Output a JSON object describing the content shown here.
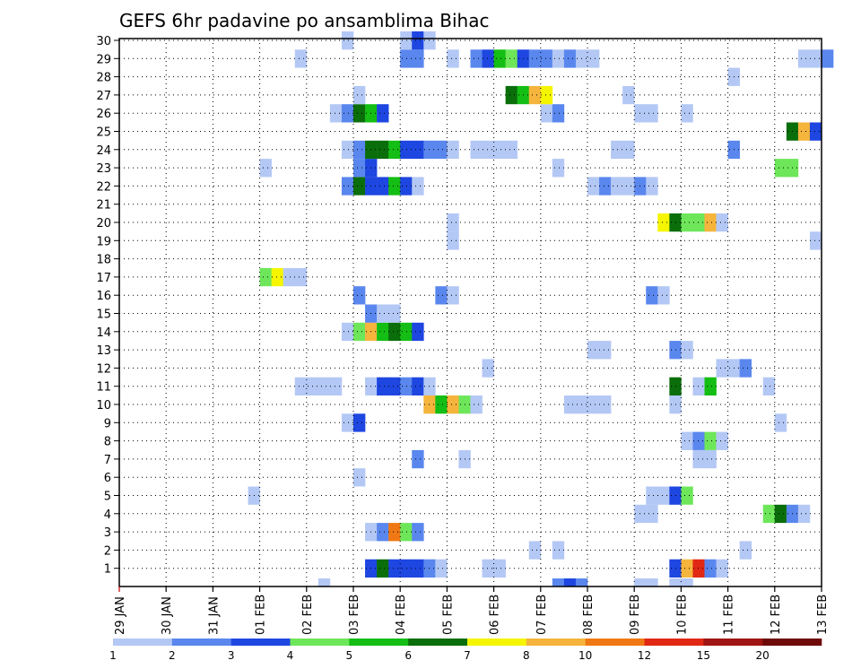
{
  "chart_data": {
    "type": "heatmap",
    "title": "GEFS 6hr padavine po ansamblima Bihac",
    "x_tick_labels": [
      "29 JAN",
      "30 JAN",
      "31 JAN",
      "01 FEB",
      "02 FEB",
      "03 FEB",
      "04 FEB",
      "05 FEB",
      "06 FEB",
      "07 FEB",
      "08 FEB",
      "09 FEB",
      "10 FEB",
      "11 FEB",
      "12 FEB",
      "13 FEB"
    ],
    "y_tick_labels": [
      "1",
      "2",
      "3",
      "4",
      "5",
      "6",
      "7",
      "8",
      "9",
      "10",
      "11",
      "12",
      "13",
      "14",
      "15",
      "16",
      "17",
      "18",
      "19",
      "20",
      "21",
      "22",
      "23",
      "24",
      "25",
      "26",
      "27",
      "28",
      "29",
      "30"
    ],
    "xlim_steps": [
      0,
      60
    ],
    "ylim": [
      0,
      30
    ],
    "grid": true,
    "legend": {
      "position": "bottom",
      "boundaries": [
        "1",
        "2",
        "3",
        "4",
        "5",
        "6",
        "7",
        "8",
        "10",
        "12",
        "15",
        "20"
      ],
      "colors": [
        "#b4c8f5",
        "#5a87ee",
        "#1e46e1",
        "#6ee65a",
        "#14be14",
        "#0a6e0a",
        "#f5f500",
        "#f5b43c",
        "#f07814",
        "#e12814",
        "#a01414",
        "#6e0a0a"
      ]
    },
    "cells": [
      [
        1,
        21,
        3
      ],
      [
        1,
        22,
        6
      ],
      [
        1,
        23,
        3
      ],
      [
        1,
        24,
        3
      ],
      [
        1,
        25,
        3
      ],
      [
        1,
        26,
        2
      ],
      [
        1,
        27,
        1
      ],
      [
        1,
        31,
        1
      ],
      [
        1,
        32,
        1
      ],
      [
        1,
        47,
        3
      ],
      [
        1,
        48,
        8
      ],
      [
        1,
        49,
        10
      ],
      [
        1,
        50,
        2
      ],
      [
        1,
        51,
        1
      ],
      [
        2,
        35,
        1
      ],
      [
        2,
        37,
        1
      ],
      [
        2,
        53,
        1
      ],
      [
        3,
        21,
        1
      ],
      [
        3,
        22,
        2
      ],
      [
        3,
        23,
        9
      ],
      [
        3,
        24,
        4
      ],
      [
        3,
        25,
        2
      ],
      [
        4,
        44,
        1
      ],
      [
        4,
        45,
        1
      ],
      [
        4,
        55,
        4
      ],
      [
        4,
        56,
        6
      ],
      [
        4,
        57,
        2
      ],
      [
        4,
        58,
        1
      ],
      [
        5,
        11,
        1
      ],
      [
        5,
        45,
        1
      ],
      [
        5,
        46,
        1
      ],
      [
        5,
        47,
        3
      ],
      [
        5,
        48,
        4
      ],
      [
        6,
        20,
        1
      ],
      [
        7,
        25,
        2
      ],
      [
        7,
        29,
        1
      ],
      [
        7,
        49,
        1
      ],
      [
        7,
        50,
        1
      ],
      [
        8,
        48,
        1
      ],
      [
        8,
        49,
        2
      ],
      [
        8,
        50,
        4
      ],
      [
        8,
        51,
        1
      ],
      [
        9,
        19,
        1
      ],
      [
        9,
        20,
        3
      ],
      [
        9,
        56,
        1
      ],
      [
        10,
        26,
        8
      ],
      [
        10,
        27,
        5
      ],
      [
        10,
        28,
        8
      ],
      [
        10,
        29,
        4
      ],
      [
        10,
        30,
        1
      ],
      [
        10,
        38,
        1
      ],
      [
        10,
        39,
        1
      ],
      [
        10,
        40,
        1
      ],
      [
        10,
        41,
        1
      ],
      [
        10,
        47,
        1
      ],
      [
        11,
        15,
        1
      ],
      [
        11,
        16,
        1
      ],
      [
        11,
        17,
        1
      ],
      [
        11,
        18,
        1
      ],
      [
        11,
        21,
        1
      ],
      [
        11,
        22,
        3
      ],
      [
        11,
        23,
        3
      ],
      [
        11,
        24,
        2
      ],
      [
        11,
        25,
        3
      ],
      [
        11,
        26,
        1
      ],
      [
        11,
        47,
        6
      ],
      [
        11,
        49,
        1
      ],
      [
        11,
        50,
        5
      ],
      [
        11,
        55,
        1
      ],
      [
        12,
        31,
        1
      ],
      [
        12,
        51,
        1
      ],
      [
        12,
        52,
        1
      ],
      [
        12,
        53,
        2
      ],
      [
        13,
        40,
        1
      ],
      [
        13,
        41,
        1
      ],
      [
        13,
        47,
        2
      ],
      [
        13,
        48,
        1
      ],
      [
        14,
        19,
        1
      ],
      [
        14,
        20,
        4
      ],
      [
        14,
        21,
        8
      ],
      [
        14,
        22,
        5
      ],
      [
        14,
        23,
        6
      ],
      [
        14,
        24,
        5
      ],
      [
        14,
        25,
        3
      ],
      [
        15,
        21,
        2
      ],
      [
        15,
        22,
        1
      ],
      [
        15,
        23,
        1
      ],
      [
        16,
        20,
        2
      ],
      [
        16,
        27,
        2
      ],
      [
        16,
        28,
        1
      ],
      [
        16,
        45,
        2
      ],
      [
        16,
        46,
        1
      ],
      [
        17,
        12,
        4
      ],
      [
        17,
        13,
        7
      ],
      [
        17,
        14,
        1
      ],
      [
        17,
        15,
        1
      ],
      [
        19,
        28,
        1
      ],
      [
        19,
        59,
        1
      ],
      [
        20,
        28,
        1
      ],
      [
        20,
        46,
        7
      ],
      [
        20,
        47,
        6
      ],
      [
        20,
        48,
        4
      ],
      [
        20,
        49,
        4
      ],
      [
        20,
        50,
        8
      ],
      [
        20,
        51,
        1
      ],
      [
        22,
        19,
        2
      ],
      [
        22,
        20,
        6
      ],
      [
        22,
        21,
        3
      ],
      [
        22,
        22,
        3
      ],
      [
        22,
        23,
        5
      ],
      [
        22,
        24,
        3
      ],
      [
        22,
        25,
        1
      ],
      [
        22,
        40,
        1
      ],
      [
        22,
        41,
        2
      ],
      [
        22,
        42,
        1
      ],
      [
        22,
        43,
        1
      ],
      [
        22,
        44,
        2
      ],
      [
        22,
        45,
        1
      ],
      [
        23,
        12,
        1
      ],
      [
        23,
        20,
        2
      ],
      [
        23,
        21,
        3
      ],
      [
        23,
        37,
        1
      ],
      [
        23,
        56,
        4
      ],
      [
        23,
        57,
        4
      ],
      [
        24,
        19,
        1
      ],
      [
        24,
        20,
        2
      ],
      [
        24,
        21,
        6
      ],
      [
        24,
        22,
        6
      ],
      [
        24,
        23,
        5
      ],
      [
        24,
        24,
        3
      ],
      [
        24,
        25,
        3
      ],
      [
        24,
        26,
        2
      ],
      [
        24,
        27,
        2
      ],
      [
        24,
        28,
        1
      ],
      [
        24,
        30,
        1
      ],
      [
        24,
        31,
        1
      ],
      [
        24,
        32,
        1
      ],
      [
        24,
        33,
        1
      ],
      [
        24,
        42,
        1
      ],
      [
        24,
        43,
        1
      ],
      [
        24,
        52,
        2
      ],
      [
        25,
        57,
        6
      ],
      [
        25,
        58,
        8
      ],
      [
        25,
        59,
        3
      ],
      [
        26,
        18,
        1
      ],
      [
        26,
        19,
        2
      ],
      [
        26,
        20,
        6
      ],
      [
        26,
        21,
        5
      ],
      [
        26,
        22,
        3
      ],
      [
        26,
        36,
        1
      ],
      [
        26,
        37,
        2
      ],
      [
        26,
        44,
        1
      ],
      [
        26,
        45,
        1
      ],
      [
        26,
        48,
        1
      ],
      [
        27,
        20,
        1
      ],
      [
        27,
        33,
        6
      ],
      [
        27,
        34,
        5
      ],
      [
        27,
        35,
        8
      ],
      [
        27,
        36,
        7
      ],
      [
        27,
        43,
        1
      ],
      [
        28,
        52,
        1
      ],
      [
        29,
        15,
        1
      ],
      [
        29,
        24,
        2
      ],
      [
        29,
        25,
        2
      ],
      [
        29,
        28,
        1
      ],
      [
        29,
        30,
        2
      ],
      [
        29,
        31,
        3
      ],
      [
        29,
        32,
        5
      ],
      [
        29,
        33,
        4
      ],
      [
        29,
        34,
        3
      ],
      [
        29,
        35,
        2
      ],
      [
        29,
        36,
        2
      ],
      [
        29,
        37,
        1
      ],
      [
        29,
        38,
        2
      ],
      [
        29,
        39,
        1
      ],
      [
        29,
        40,
        1
      ],
      [
        29,
        58,
        1
      ],
      [
        29,
        59,
        1
      ],
      [
        29,
        60,
        2
      ],
      [
        30,
        19,
        1
      ],
      [
        30,
        24,
        1
      ],
      [
        30,
        25,
        3
      ],
      [
        30,
        26,
        1
      ],
      [
        0,
        17,
        1
      ],
      [
        0,
        37,
        2
      ],
      [
        0,
        38,
        3
      ],
      [
        0,
        39,
        2
      ],
      [
        0,
        44,
        1
      ],
      [
        0,
        45,
        1
      ],
      [
        0,
        47,
        1
      ],
      [
        0,
        48,
        1
      ]
    ]
  }
}
